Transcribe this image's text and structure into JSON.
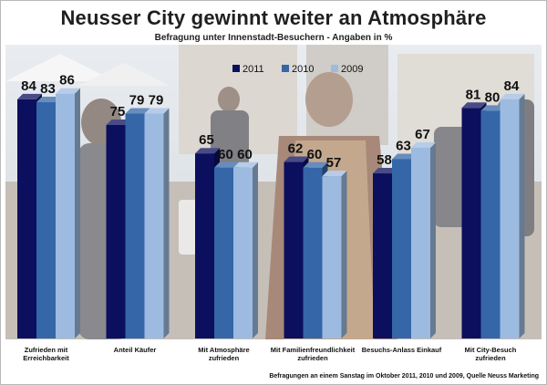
{
  "chart_data": {
    "type": "bar",
    "title": "Neusser City gewinnt weiter an Atmosphäre",
    "subtitle": "Befragung unter Innenstadt-Besuchern - Angaben in %",
    "categories": [
      "Zufrieden mit Erreichbarkeit",
      "Anteil Käufer",
      "Mit Atmosphäre zufrieden",
      "Mit Familienfreundlichkeit zufrieden",
      "Besuchs-Anlass Einkauf",
      "Mit City-Besuch zufrieden"
    ],
    "series": [
      {
        "name": "2011",
        "values": [
          84,
          75,
          65,
          62,
          58,
          81
        ],
        "color": "#0c0f5e"
      },
      {
        "name": "2010",
        "values": [
          83,
          79,
          60,
          60,
          63,
          80
        ],
        "color": "#3466a8"
      },
      {
        "name": "2009",
        "values": [
          86,
          79,
          60,
          57,
          67,
          84
        ],
        "color": "#9dbbe0"
      }
    ],
    "ylim": [
      0,
      100
    ],
    "grid": false,
    "legend_position": "top-center",
    "footnote": "Befragungen an einem Sanstag im Oktober 2011, 2010 und 2009, Quelle Neuss Marketing"
  }
}
